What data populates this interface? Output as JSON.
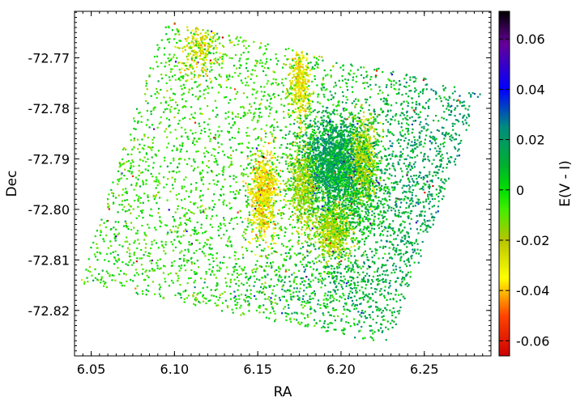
{
  "chart_data": {
    "type": "scatter",
    "title": "",
    "xlabel": "RA",
    "ylabel": "Dec",
    "colorbar_label": "E(V - I)",
    "xlim": [
      6.04,
      6.29
    ],
    "ylim": [
      -72.829,
      -72.7608
    ],
    "x_ticks": [
      "6.05",
      "6.10",
      "6.15",
      "6.20",
      "6.25"
    ],
    "y_ticks": [
      "-72.77",
      "-72.78",
      "-72.79",
      "-72.80",
      "-72.81",
      "-72.82"
    ],
    "colorbar_ticks": [
      "0.06",
      "0.04",
      "0.02",
      "0",
      "-0.02",
      "-0.04",
      "-0.06"
    ],
    "colorbar_range": [
      -0.066,
      0.071
    ],
    "colormap": [
      {
        "v": -0.066,
        "color": "#cc0000"
      },
      {
        "v": -0.05,
        "color": "#ff4400"
      },
      {
        "v": -0.035,
        "color": "#ffff00"
      },
      {
        "v": -0.02,
        "color": "#b8c400"
      },
      {
        "v": -0.008,
        "color": "#44ee00"
      },
      {
        "v": 0.0,
        "color": "#00e000"
      },
      {
        "v": 0.01,
        "color": "#00b030"
      },
      {
        "v": 0.025,
        "color": "#008c80"
      },
      {
        "v": 0.04,
        "color": "#0000ff"
      },
      {
        "v": 0.058,
        "color": "#660099"
      },
      {
        "v": 0.071,
        "color": "#000000"
      }
    ],
    "field_corners": [
      {
        "ra": 6.094,
        "dec": -72.7625
      },
      {
        "ra": 6.285,
        "dec": -72.7765
      },
      {
        "ra": 6.228,
        "dec": -72.8265
      },
      {
        "ra": 6.042,
        "dec": -72.8145
      }
    ],
    "n_points": 9500,
    "overdensities": [
      {
        "ra": 6.195,
        "dec": -72.7905,
        "ra_sigma": 0.01,
        "dec_sigma": 0.0045,
        "weight": 0.14,
        "ebv": 0.016
      },
      {
        "ra": 6.205,
        "dec": -72.796,
        "ra_sigma": 0.012,
        "dec_sigma": 0.006,
        "weight": 0.06,
        "ebv": 0.006
      },
      {
        "ra": 6.153,
        "dec": -72.797,
        "ra_sigma": 0.004,
        "dec_sigma": 0.004,
        "weight": 0.06,
        "ebv": -0.033
      },
      {
        "ra": 6.175,
        "dec": -72.775,
        "ra_sigma": 0.003,
        "dec_sigma": 0.004,
        "weight": 0.03,
        "ebv": -0.03
      },
      {
        "ra": 6.213,
        "dec": -72.79,
        "ra_sigma": 0.004,
        "dec_sigma": 0.004,
        "weight": 0.05,
        "ebv": -0.02
      },
      {
        "ra": 6.195,
        "dec": -72.804,
        "ra_sigma": 0.006,
        "dec_sigma": 0.003,
        "weight": 0.05,
        "ebv": -0.02
      },
      {
        "ra": 6.177,
        "dec": -72.795,
        "ra_sigma": 0.004,
        "dec_sigma": 0.004,
        "weight": 0.04,
        "ebv": -0.018
      },
      {
        "ra": 6.115,
        "dec": -72.768,
        "ra_sigma": 0.006,
        "dec_sigma": 0.003,
        "weight": 0.02,
        "ebv": -0.028
      },
      {
        "ra": 6.245,
        "dec": -72.795,
        "ra_sigma": 0.015,
        "dec_sigma": 0.01,
        "weight": 0.04,
        "ebv": 0.018
      },
      {
        "ra": 6.19,
        "dec": -72.815,
        "ra_sigma": 0.03,
        "dec_sigma": 0.004,
        "weight": 0.03,
        "ebv": 0.018
      }
    ]
  }
}
